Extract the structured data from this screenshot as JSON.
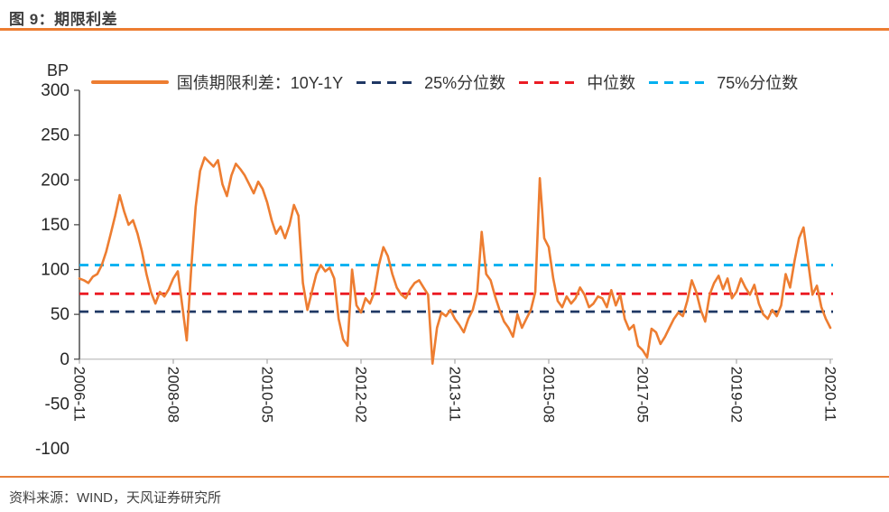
{
  "header": {
    "title": "图 9：期限利差"
  },
  "footer": {
    "source": "资料来源：WIND，天风证券研究所"
  },
  "colors": {
    "accent_rule": "#ED7D31",
    "spread_line": "#ED7D31",
    "p25_line": "#1F3864",
    "median_line": "#EB1C24",
    "p75_line": "#00B0F0",
    "axis": "#404040",
    "zero_gridline": "#BFBFBF"
  },
  "chart_data": {
    "type": "line",
    "unit_label": "BP",
    "x_start": "2006-11",
    "x_step_months": 1,
    "x_tick_labels": [
      "2006-11",
      "2008-08",
      "2010-05",
      "2012-02",
      "2013-11",
      "2015-08",
      "2017-05",
      "2019-02",
      "2020-11"
    ],
    "x_tick_step_months": 21,
    "ylim": [
      -100,
      300
    ],
    "y_ticks": [
      300,
      250,
      200,
      150,
      100,
      50,
      0,
      -50,
      -100
    ],
    "grid": "zero-line-only",
    "legend_position": "top",
    "series": [
      {
        "name": "国债期限利差：10Y-1Y",
        "type": "line",
        "style": "solid",
        "color": "#ED7D31",
        "values": [
          90,
          88,
          85,
          92,
          95,
          105,
          120,
          140,
          160,
          183,
          165,
          150,
          155,
          140,
          120,
          95,
          75,
          62,
          75,
          70,
          78,
          90,
          98,
          60,
          21,
          100,
          170,
          210,
          225,
          220,
          215,
          222,
          195,
          182,
          205,
          218,
          212,
          205,
          195,
          185,
          198,
          190,
          175,
          155,
          140,
          148,
          135,
          150,
          172,
          160,
          85,
          55,
          75,
          95,
          105,
          98,
          102,
          90,
          45,
          22,
          15,
          100,
          60,
          52,
          68,
          62,
          75,
          105,
          125,
          115,
          95,
          80,
          72,
          68,
          78,
          85,
          88,
          80,
          72,
          -5,
          35,
          52,
          48,
          55,
          45,
          38,
          30,
          45,
          55,
          75,
          142,
          95,
          88,
          70,
          55,
          42,
          35,
          25,
          50,
          35,
          45,
          55,
          75,
          202,
          135,
          125,
          90,
          65,
          58,
          70,
          62,
          68,
          80,
          72,
          58,
          62,
          70,
          68,
          58,
          77,
          60,
          72,
          45,
          33,
          38,
          15,
          10,
          2,
          34,
          30,
          17,
          25,
          35,
          45,
          52,
          48,
          65,
          88,
          75,
          55,
          42,
          72,
          85,
          93,
          78,
          90,
          68,
          75,
          90,
          80,
          72,
          83,
          62,
          50,
          45,
          55,
          48,
          60,
          95,
          80,
          110,
          135,
          147,
          110,
          72,
          82,
          58,
          45,
          35
        ]
      },
      {
        "name": "25%分位数",
        "type": "hline",
        "style": "dashed",
        "color": "#1F3864",
        "value": 53
      },
      {
        "name": "中位数",
        "type": "hline",
        "style": "dashed",
        "color": "#EB1C24",
        "value": 73
      },
      {
        "name": "75%分位数",
        "type": "hline",
        "style": "dashed",
        "color": "#00B0F0",
        "value": 105
      }
    ]
  }
}
